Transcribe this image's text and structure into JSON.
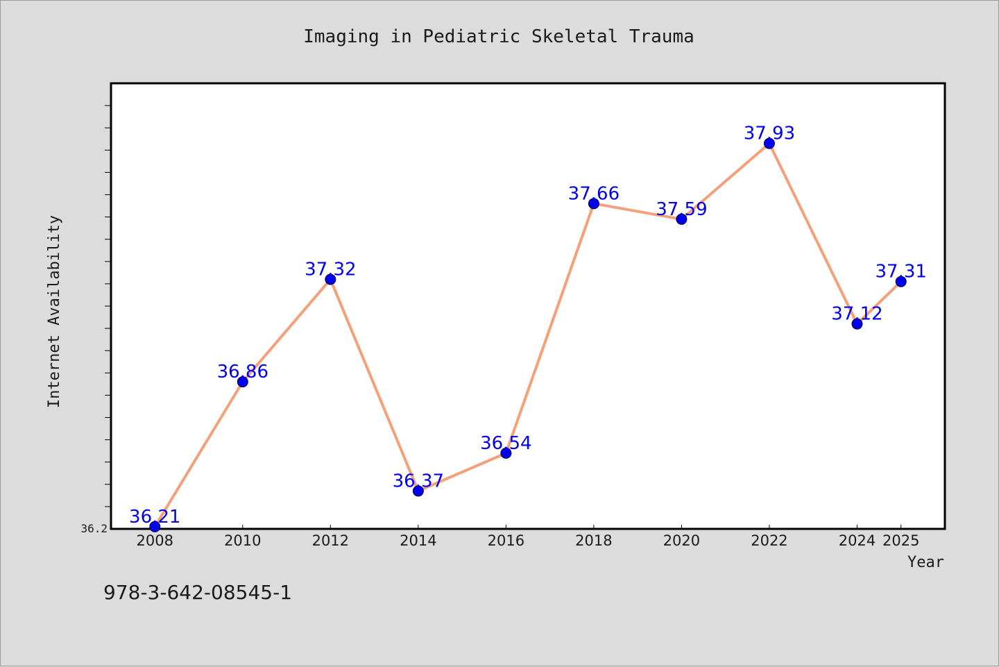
{
  "chart_data": {
    "type": "line",
    "title": "Imaging in Pediatric Skeletal Trauma",
    "xlabel": "Year",
    "ylabel": "Internet Availability",
    "x": [
      "2008",
      "2010",
      "2012",
      "2014",
      "2016",
      "2018",
      "2020",
      "2022",
      "2024",
      "2025"
    ],
    "series": [
      {
        "values": [
          36.21,
          36.86,
          37.32,
          36.37,
          36.54,
          37.66,
          37.59,
          37.93,
          37.12,
          37.31
        ],
        "labels": [
          "36.21",
          "36.86",
          "37.32",
          "36.37",
          "36.54",
          "37.66",
          "37.59",
          "37.93",
          "37.12",
          "37.31"
        ]
      }
    ],
    "xlim": [
      2007,
      2026
    ],
    "ylim": [
      36.2,
      38.2
    ],
    "y_tick_label": "36.2",
    "y_minor_tick_step": 0.1,
    "grid": false,
    "legend": "none",
    "line_color": "#f4a07a",
    "marker_color": "#0000ee",
    "label_color": "#0000ee"
  },
  "footer": {
    "code": "978-3-642-08545-1"
  }
}
